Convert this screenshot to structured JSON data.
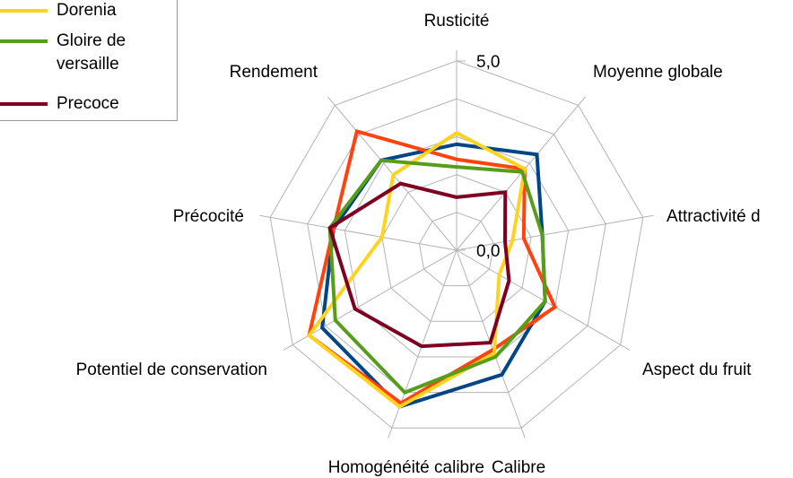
{
  "chart_data": {
    "type": "radar",
    "categories": [
      "Rusticité",
      "Moyenne globale",
      "Attractivité d",
      "Aspect du fruit",
      "Calibre",
      "Homogénéité calibre",
      "Potentiel de conservation",
      "Précocité",
      "Rendement"
    ],
    "series": [
      {
        "color": "#004586",
        "values": [
          2.8,
          3.3,
          2.3,
          2.7,
          3.5,
          4.4,
          4.1,
          3.3,
          3.1
        ]
      },
      {
        "color": "#ff420e",
        "values": [
          2.4,
          2.8,
          1.8,
          3.0,
          2.8,
          4.3,
          4.5,
          3.3,
          4.1
        ]
      },
      {
        "name": "Dorenia",
        "color": "#ffd320",
        "values": [
          3.1,
          2.8,
          1.5,
          1.3,
          2.9,
          4.4,
          4.5,
          2.0,
          2.6
        ]
      },
      {
        "name": "Gloire de versaille",
        "color": "#579d1c",
        "values": [
          2.2,
          2.7,
          2.3,
          2.7,
          3.0,
          4.0,
          3.7,
          3.4,
          3.1
        ]
      },
      {
        "name": "Precoce",
        "color": "#7e0021",
        "values": [
          1.4,
          2.0,
          1.3,
          1.6,
          2.6,
          2.7,
          3.1,
          3.4,
          2.3
        ]
      }
    ],
    "rlim": [
      0,
      5
    ],
    "rgrid": [
      0,
      1,
      2,
      3,
      4,
      5
    ],
    "rticks": [
      {
        "value": 0,
        "label": "0,0"
      },
      {
        "value": 5,
        "label": "5,0"
      }
    ],
    "legend": "top-left"
  }
}
